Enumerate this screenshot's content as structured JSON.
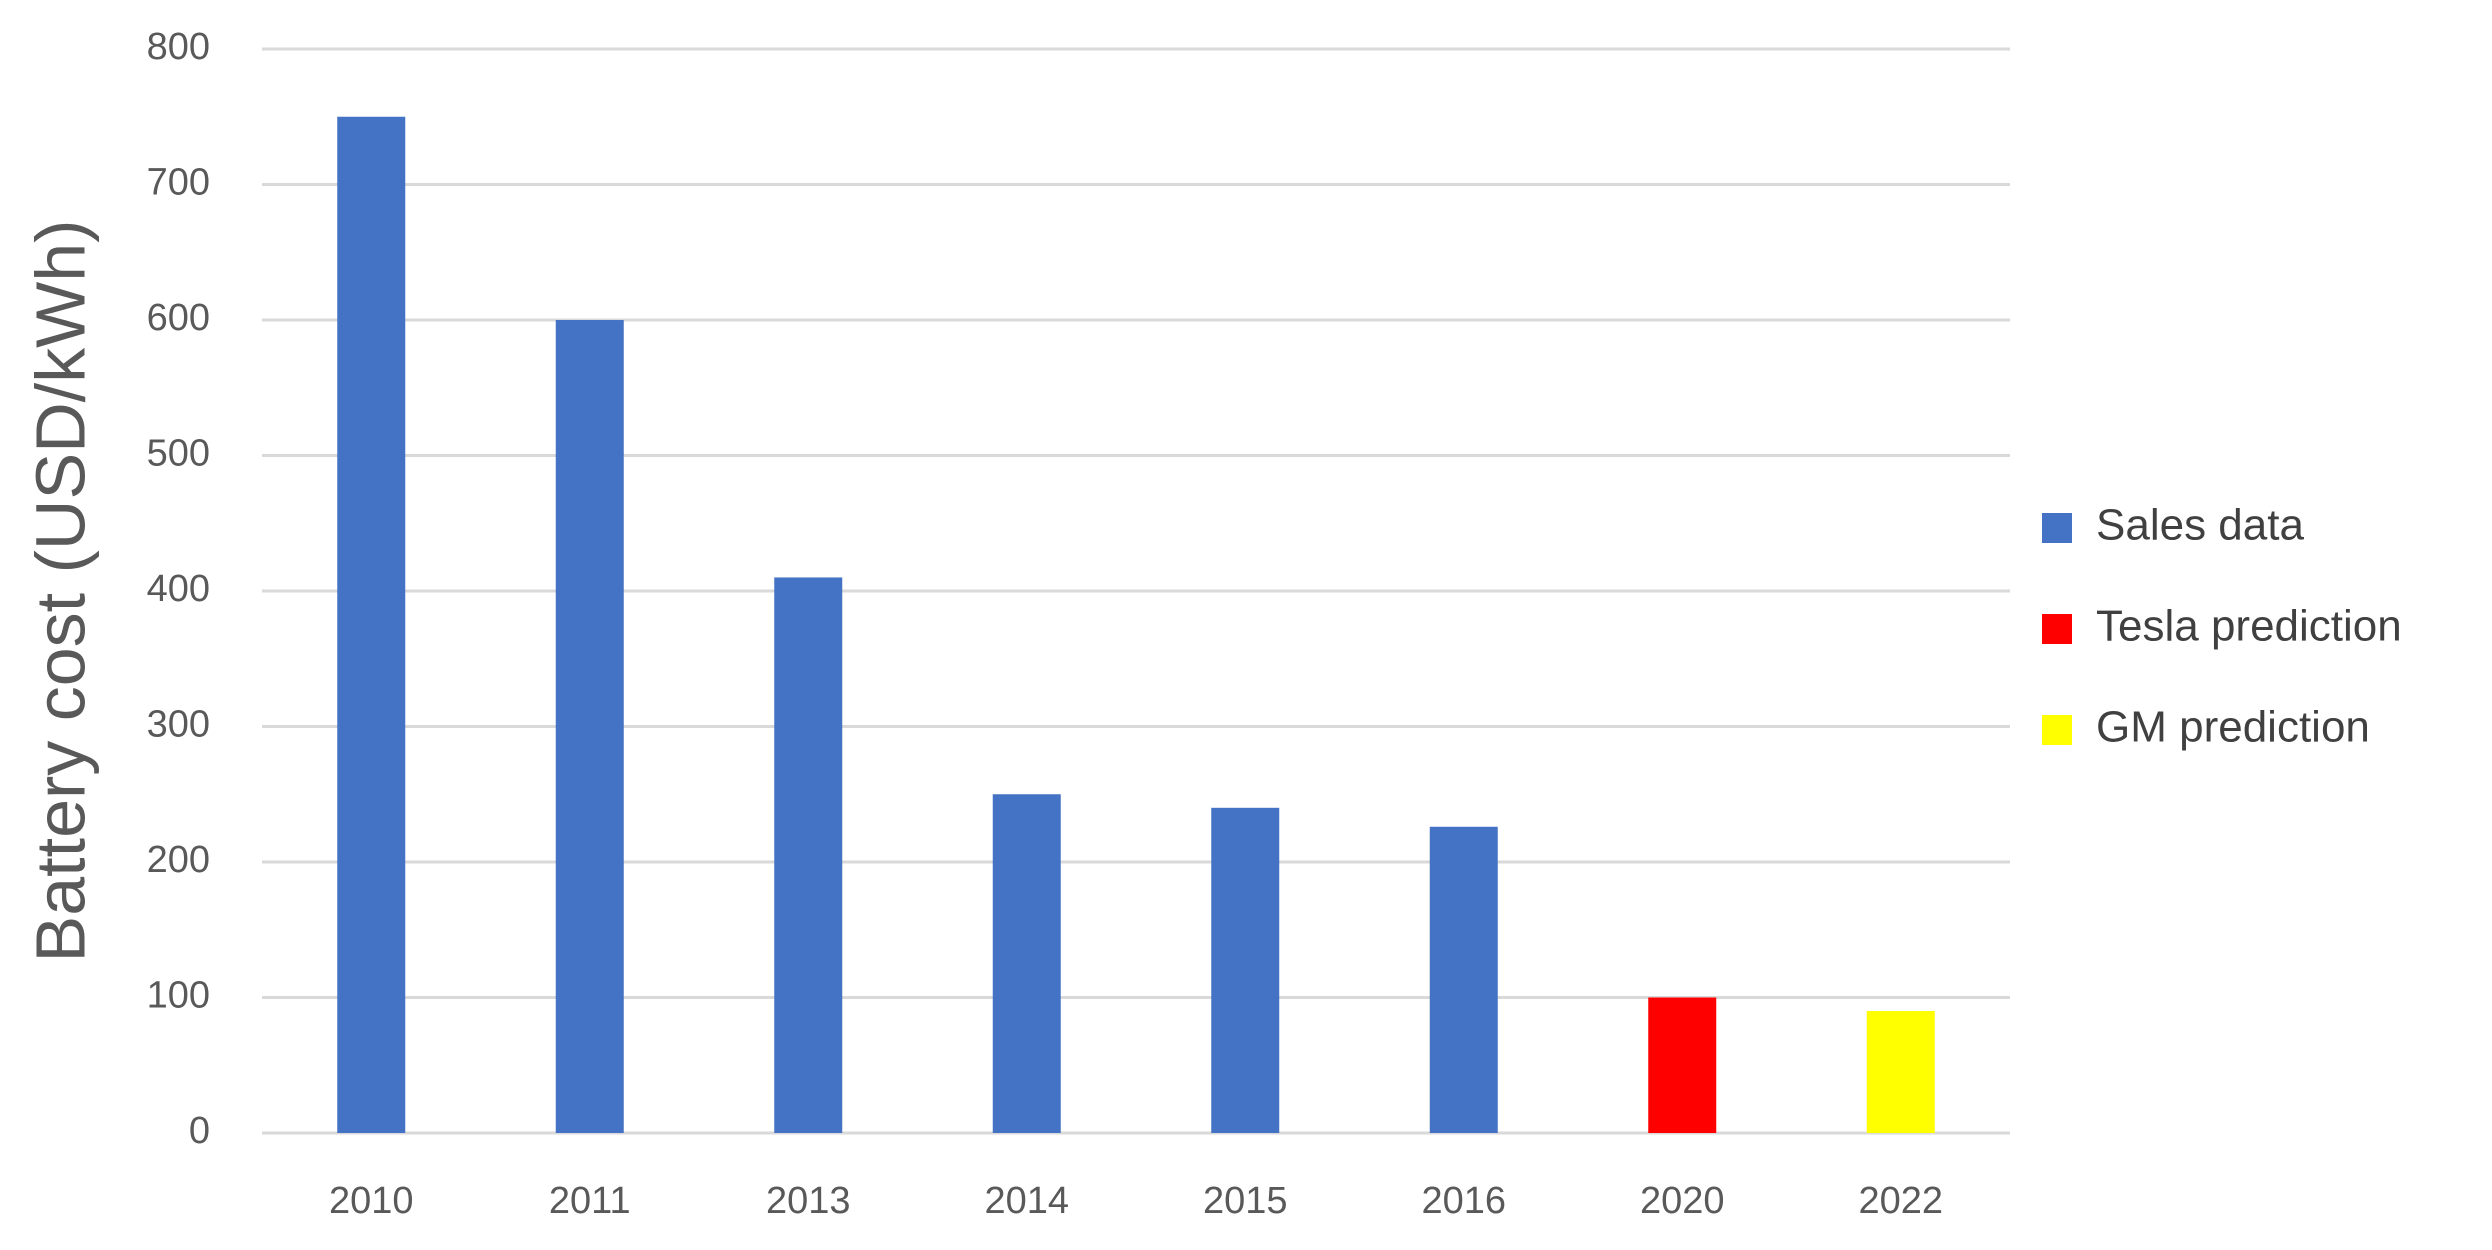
{
  "chart_data": {
    "type": "bar",
    "y_label": "Battery cost (USD/kWh)",
    "categories": [
      "2010",
      "2011",
      "2013",
      "2014",
      "2015",
      "2016",
      "2020",
      "2022"
    ],
    "series": [
      {
        "name": "Sales data",
        "color": "#4472c4",
        "values": [
          750,
          600,
          410,
          250,
          240,
          226,
          null,
          null
        ]
      },
      {
        "name": "Tesla prediction",
        "color": "#ff0000",
        "values": [
          null,
          null,
          null,
          null,
          null,
          null,
          100,
          null
        ]
      },
      {
        "name": "GM prediction",
        "color": "#ffff00",
        "values": [
          null,
          null,
          null,
          null,
          null,
          null,
          null,
          90
        ]
      }
    ],
    "ylim": [
      0,
      800
    ],
    "yticks": [
      0,
      100,
      200,
      300,
      400,
      500,
      600,
      700,
      800
    ],
    "grid": true,
    "legend": "right"
  }
}
